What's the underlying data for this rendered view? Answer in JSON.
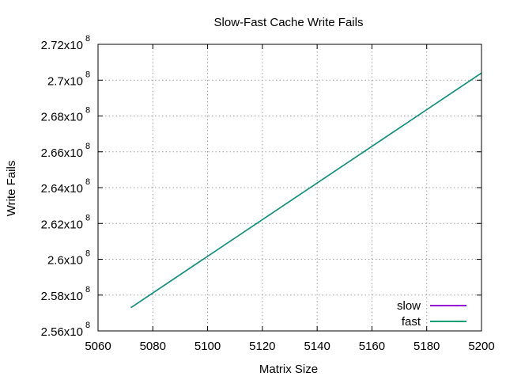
{
  "chart_data": {
    "type": "line",
    "title": "Slow-Fast Cache Write Fails",
    "xlabel": "Matrix Size",
    "ylabel": "Write Fails",
    "xlim": [
      5060,
      5200
    ],
    "ylim": [
      256000000,
      272000000
    ],
    "x_ticks": [
      5060,
      5080,
      5100,
      5120,
      5140,
      5160,
      5180,
      5200
    ],
    "y_ticks": [
      {
        "value": 256000000,
        "mantissa": "2.56x10",
        "exp": "8"
      },
      {
        "value": 258000000,
        "mantissa": "2.58x10",
        "exp": "8"
      },
      {
        "value": 260000000,
        "mantissa": "2.6x10",
        "exp": "8"
      },
      {
        "value": 262000000,
        "mantissa": "2.62x10",
        "exp": "8"
      },
      {
        "value": 264000000,
        "mantissa": "2.64x10",
        "exp": "8"
      },
      {
        "value": 266000000,
        "mantissa": "2.66x10",
        "exp": "8"
      },
      {
        "value": 268000000,
        "mantissa": "2.68x10",
        "exp": "8"
      },
      {
        "value": 270000000,
        "mantissa": "2.7x10",
        "exp": "8"
      },
      {
        "value": 272000000,
        "mantissa": "2.72x10",
        "exp": "8"
      }
    ],
    "grid": true,
    "legend_position": "bottom-right",
    "series": [
      {
        "name": "slow",
        "color": "#9400d3",
        "x": [
          5072,
          5200
        ],
        "y": [
          257300000,
          270400000
        ]
      },
      {
        "name": "fast",
        "color": "#009e73",
        "x": [
          5072,
          5200
        ],
        "y": [
          257300000,
          270400000
        ]
      }
    ]
  }
}
